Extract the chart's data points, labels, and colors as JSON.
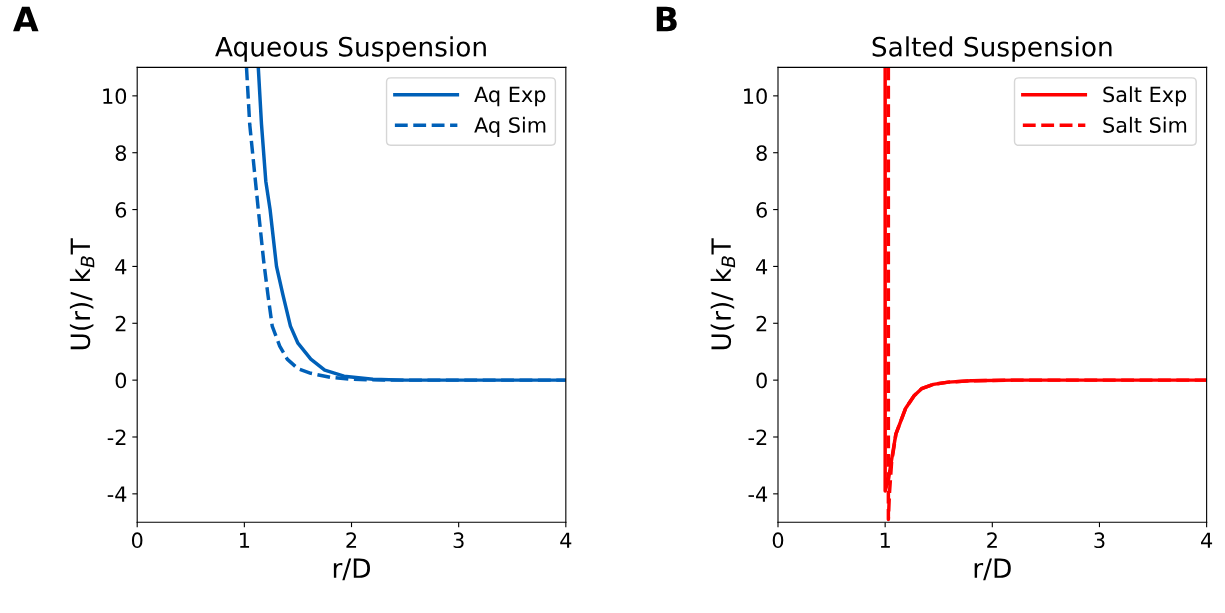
{
  "chart_data": [
    {
      "type": "line",
      "title": "Aqueous Suspension",
      "xlabel": "r/D",
      "ylabel": "U(r)/ k$_{B}$T",
      "annotations": [
        "A"
      ],
      "xlim": [
        0,
        4
      ],
      "ylim": [
        -5,
        11
      ],
      "xticks": [
        0,
        1,
        2,
        3,
        4
      ],
      "yticks": [
        -4,
        -2,
        0,
        2,
        4,
        6,
        8,
        10
      ],
      "legend": "top right",
      "grid": false,
      "series": [
        {
          "name": "Aq Exp",
          "color": "#0060b8",
          "line_style": "solid",
          "x": [
            1.13,
            1.16,
            1.2,
            1.24,
            1.3,
            1.36,
            1.43,
            1.5,
            1.62,
            1.75,
            1.93,
            2.2,
            2.5,
            3,
            4
          ],
          "values": [
            11,
            9,
            7,
            6,
            4,
            3,
            1.9,
            1.3,
            0.74,
            0.35,
            0.14,
            0.03,
            0,
            0,
            0
          ]
        },
        {
          "name": "Aq Sim",
          "color": "#0060b8",
          "line_style": "dashed",
          "x": [
            1.02,
            1.05,
            1.09,
            1.13,
            1.18,
            1.22,
            1.26,
            1.33,
            1.4,
            1.5,
            1.62,
            1.8,
            2.0,
            2.3,
            4
          ],
          "values": [
            11,
            9,
            7.5,
            6,
            4.2,
            3,
            1.9,
            1.2,
            0.74,
            0.4,
            0.24,
            0.1,
            0.03,
            0,
            0
          ]
        }
      ]
    },
    {
      "type": "line",
      "title": "Salted Suspension",
      "xlabel": "r/D",
      "ylabel": "U(r)/ k$_{B}$T",
      "annotations": [
        "B"
      ],
      "xlim": [
        0,
        4
      ],
      "ylim": [
        -5,
        11
      ],
      "xticks": [
        0,
        1,
        2,
        3,
        4
      ],
      "yticks": [
        -4,
        -2,
        0,
        2,
        4,
        6,
        8,
        10
      ],
      "legend": "top right",
      "grid": false,
      "series": [
        {
          "name": "Salt Exp",
          "color": "#ff0000",
          "line_style": "solid",
          "x": [
            1.0,
            1.0,
            1.03,
            1.06,
            1.1,
            1.19,
            1.27,
            1.34,
            1.45,
            1.59,
            1.8,
            2.2,
            3,
            4
          ],
          "values": [
            11,
            -3.9,
            -3.5,
            -2.8,
            -1.9,
            -1.0,
            -0.55,
            -0.3,
            -0.15,
            -0.07,
            -0.02,
            0,
            0,
            0
          ]
        },
        {
          "name": "Salt Sim",
          "color": "#ff0000",
          "line_style": "dashed",
          "x": [
            1.03,
            1.03,
            1.04,
            1.06,
            1.1,
            1.19,
            1.27,
            1.34,
            1.45,
            1.59,
            1.8,
            2.2,
            3,
            4
          ],
          "values": [
            11,
            -4.9,
            -4.0,
            -2.9,
            -1.9,
            -1.0,
            -0.55,
            -0.3,
            -0.15,
            -0.07,
            -0.02,
            0,
            0,
            0
          ]
        }
      ]
    }
  ]
}
